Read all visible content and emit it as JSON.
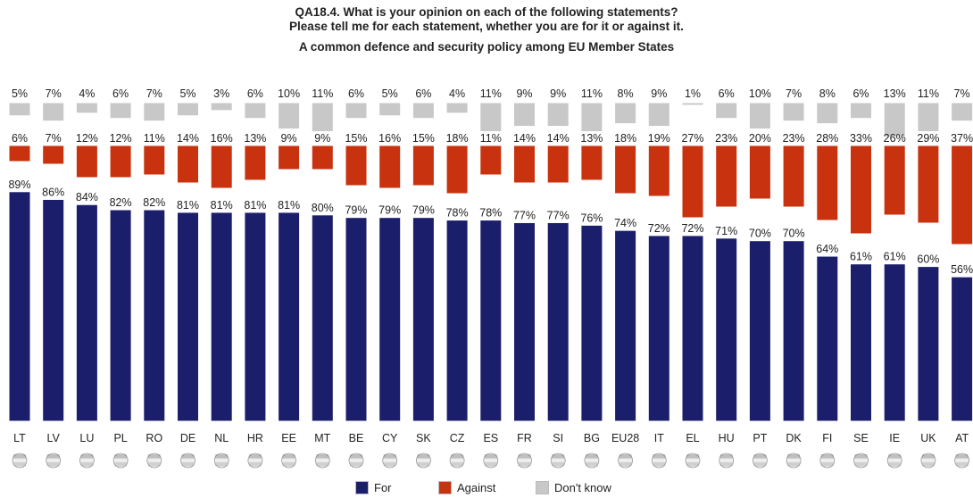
{
  "title": {
    "line1": "QA18.4. What is your opinion on each of the following statements?",
    "line2": "Please tell me for each statement, whether you are for it or against it.",
    "subtitle": "A common defence and security policy among EU Member States"
  },
  "colors": {
    "for": "#1b1f6b",
    "against": "#c8320f",
    "dontknow": "#c8c8c8"
  },
  "legend": [
    {
      "label": "For",
      "color": "#1b1f6b"
    },
    {
      "label": "Against",
      "color": "#c8320f"
    },
    {
      "label": "Don't know",
      "color": "#c8c8c8"
    }
  ],
  "chart_data": {
    "type": "bar",
    "categories": [
      "LT",
      "LV",
      "LU",
      "PL",
      "RO",
      "DE",
      "NL",
      "HR",
      "EE",
      "MT",
      "BE",
      "CY",
      "SK",
      "CZ",
      "ES",
      "FR",
      "SI",
      "BG",
      "EU28",
      "IT",
      "EL",
      "HU",
      "PT",
      "DK",
      "FI",
      "SE",
      "IE",
      "UK",
      "AT"
    ],
    "series": [
      {
        "name": "For",
        "values": [
          89,
          86,
          84,
          82,
          82,
          81,
          81,
          81,
          81,
          80,
          79,
          79,
          79,
          78,
          78,
          77,
          77,
          76,
          74,
          72,
          72,
          71,
          70,
          70,
          64,
          61,
          61,
          60,
          56
        ]
      },
      {
        "name": "Against",
        "values": [
          6,
          7,
          12,
          12,
          11,
          14,
          16,
          13,
          9,
          9,
          15,
          16,
          15,
          18,
          11,
          14,
          14,
          13,
          18,
          19,
          27,
          23,
          20,
          23,
          28,
          33,
          26,
          29,
          37
        ]
      },
      {
        "name": "Don't know",
        "values": [
          5,
          7,
          4,
          6,
          7,
          5,
          3,
          6,
          10,
          11,
          6,
          5,
          6,
          4,
          11,
          9,
          9,
          11,
          8,
          9,
          1,
          6,
          10,
          7,
          8,
          6,
          13,
          11,
          7
        ]
      }
    ],
    "value_suffix": "%",
    "flags": [
      "lithuania-flag-icon",
      "latvia-flag-icon",
      "luxembourg-flag-icon",
      "poland-flag-icon",
      "romania-flag-icon",
      "germany-flag-icon",
      "netherlands-flag-icon",
      "croatia-flag-icon",
      "estonia-flag-icon",
      "malta-flag-icon",
      "belgium-flag-icon",
      "cyprus-flag-icon",
      "slovakia-flag-icon",
      "czechia-flag-icon",
      "spain-flag-icon",
      "france-flag-icon",
      "slovenia-flag-icon",
      "bulgaria-flag-icon",
      "eu-flag-icon",
      "italy-flag-icon",
      "greece-flag-icon",
      "hungary-flag-icon",
      "portugal-flag-icon",
      "denmark-flag-icon",
      "finland-flag-icon",
      "sweden-flag-icon",
      "ireland-flag-icon",
      "uk-flag-icon",
      "austria-flag-icon"
    ]
  }
}
